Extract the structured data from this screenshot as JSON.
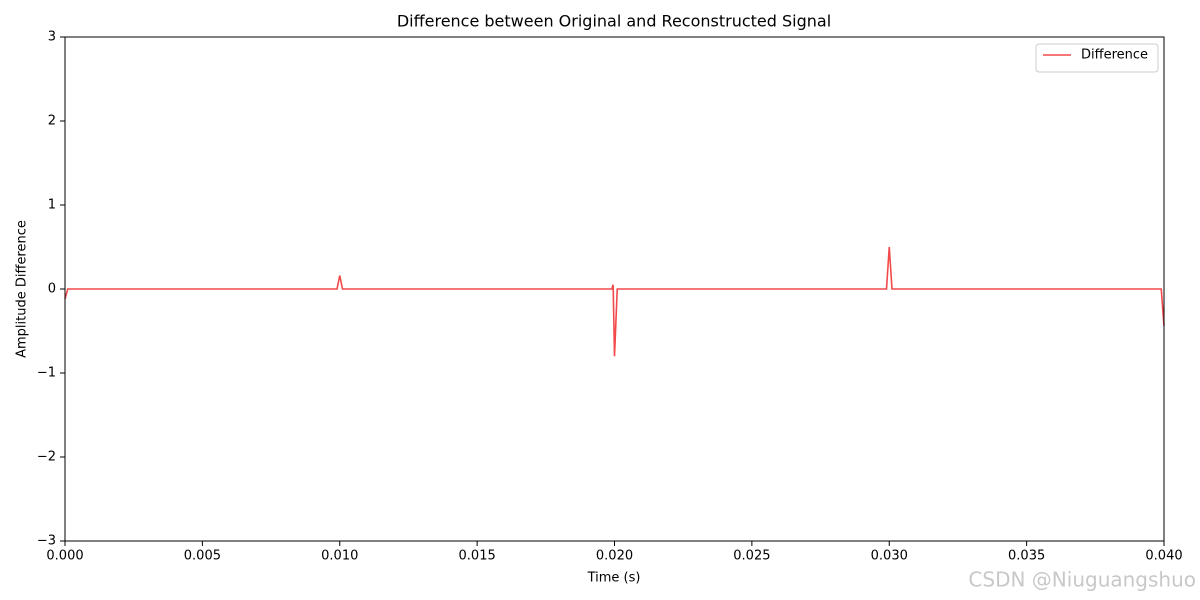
{
  "chart_data": {
    "type": "line",
    "title": "Difference between Original and Reconstructed Signal",
    "x_label": "Time (s)",
    "y_label": "Amplitude Difference",
    "x": [
      0,
      0.0001,
      0.0099,
      0.01,
      0.0101,
      0.0199,
      0.01995,
      0.02,
      0.0201,
      0.0299,
      0.03,
      0.0301,
      0.0399,
      0.04
    ],
    "series": [
      {
        "name": "Difference",
        "color": "#f24a4a",
        "values": [
          -0.12,
          0,
          0,
          0.16,
          0,
          0,
          0.05,
          -0.8,
          0,
          0,
          0.5,
          0,
          0,
          -0.44
        ]
      }
    ],
    "xlim": [
      0,
      0.04
    ],
    "ylim": [
      -3,
      3
    ],
    "xticks": [
      {
        "value": 0,
        "label": "0.000"
      },
      {
        "value": 0.005,
        "label": "0.005"
      },
      {
        "value": 0.01,
        "label": "0.010"
      },
      {
        "value": 0.015,
        "label": "0.015"
      },
      {
        "value": 0.02,
        "label": "0.020"
      },
      {
        "value": 0.025,
        "label": "0.025"
      },
      {
        "value": 0.03,
        "label": "0.030"
      },
      {
        "value": 0.035,
        "label": "0.035"
      },
      {
        "value": 0.04,
        "label": "0.040"
      }
    ],
    "yticks": [
      {
        "value": -3,
        "label": "−3"
      },
      {
        "value": -2,
        "label": "−2"
      },
      {
        "value": -1,
        "label": "−1"
      },
      0,
      1,
      2,
      3
    ],
    "grid": false,
    "legend": "upper right",
    "watermark": "CSDN @Niuguangshuo"
  }
}
